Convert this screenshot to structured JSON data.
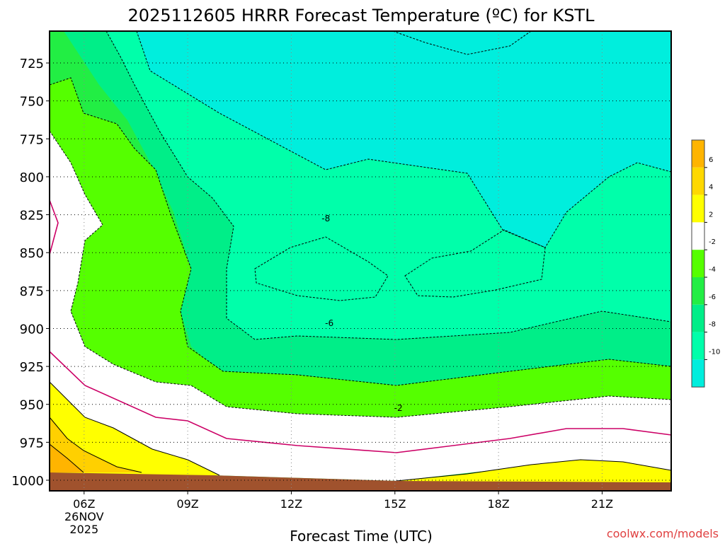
{
  "chart_data": {
    "type": "heatmap",
    "title": "2025112605 HRRR Forecast Temperature (ºC) for KSTL",
    "xlabel": "Forecast Time (UTC)",
    "ylabel": "",
    "x_ticks": [
      {
        "hour": 6,
        "label": "06Z",
        "sub": [
          "26NOV",
          "2025"
        ]
      },
      {
        "hour": 9,
        "label": "09Z"
      },
      {
        "hour": 12,
        "label": "12Z"
      },
      {
        "hour": 15,
        "label": "15Z"
      },
      {
        "hour": 18,
        "label": "18Z"
      },
      {
        "hour": 21,
        "label": "21Z"
      }
    ],
    "y_ticks": [
      725,
      750,
      775,
      800,
      825,
      850,
      875,
      900,
      925,
      950,
      975,
      1000
    ],
    "xlim": [
      5,
      23
    ],
    "ylim": [
      1007,
      704
    ],
    "y_scale": "linear-pressure-inverted",
    "grid": true,
    "legend": {
      "placement": "right",
      "levels": [
        6,
        4,
        2,
        -2,
        -4,
        -6,
        -8,
        -10
      ],
      "colors": [
        "#ffb400",
        "#ffd800",
        "#ffff00",
        "#ffffff",
        "#55ff00",
        "#22ee44",
        "#00ee88",
        "#00ffaa",
        "#00eedd"
      ]
    },
    "contour_labels": [
      {
        "text": "-8",
        "hour": 13.0,
        "pressure": 827
      },
      {
        "text": "-6",
        "hour": 13.1,
        "pressure": 896
      },
      {
        "text": "-2",
        "hour": 15.1,
        "pressure": 952
      }
    ],
    "zones": [
      {
        "name": "ground",
        "color": "#a0522d"
      },
      {
        "name": "above-0c",
        "color": "#ffff00"
      },
      {
        "name": "zero-to-minus2",
        "color": "#ffffff"
      },
      {
        "name": "minus2-to-minus4",
        "color": "#55ff00"
      },
      {
        "name": "minus4-to-minus6",
        "color": "#22ee44"
      },
      {
        "name": "minus6-to-minus8",
        "color": "#00ee88"
      },
      {
        "name": "minus8-to-minus10",
        "color": "#00ffaa"
      },
      {
        "name": "below-minus10",
        "color": "#00eedd"
      }
    ]
  },
  "watermark": "coolwx.com/models",
  "colors": {
    "warm_zone": "#ffff00",
    "warm_core": "#ffd000",
    "freezing_line": "#cc0066",
    "ground": "#a0522d",
    "watermark": "#e04040"
  }
}
